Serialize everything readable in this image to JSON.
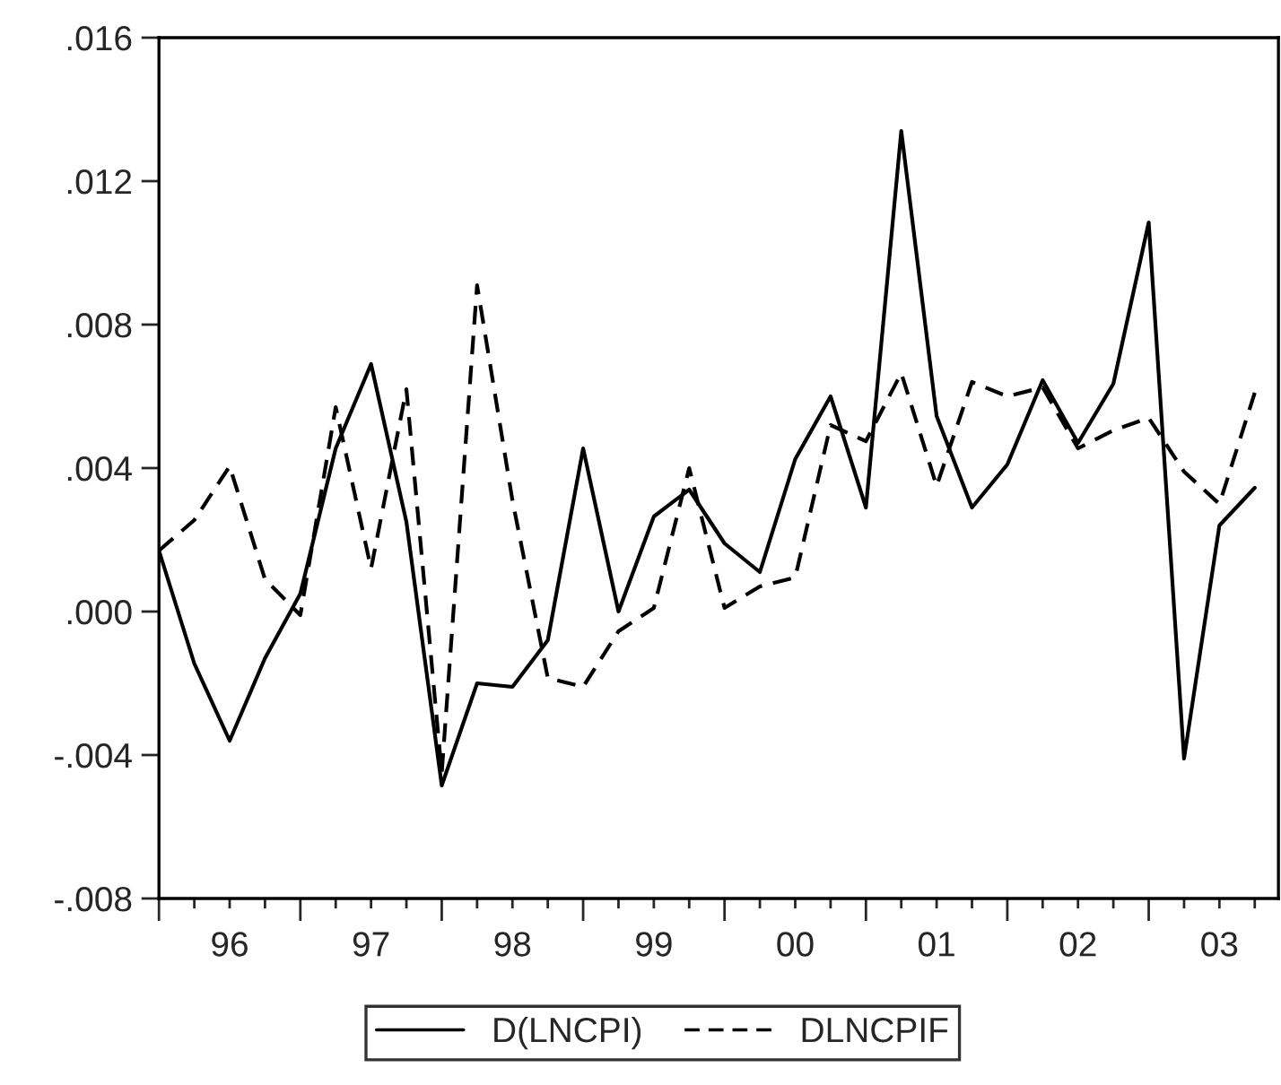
{
  "chart_data": {
    "type": "line",
    "categories": [
      null,
      null,
      "96",
      null,
      null,
      null,
      "97",
      null,
      null,
      null,
      "98",
      null,
      null,
      null,
      "99",
      null,
      null,
      null,
      "00",
      null,
      null,
      null,
      "01",
      null,
      null,
      null,
      "02",
      null,
      null,
      null,
      "03",
      null
    ],
    "series": [
      {
        "name": "D(LNCPI)",
        "color": "#000000",
        "line_style": "solid",
        "values": [
          0.0017,
          -0.00145,
          -0.0036,
          -0.0013,
          0.0005,
          0.00455,
          0.0069,
          0.0025,
          -0.00485,
          -0.002,
          -0.0021,
          -0.0008,
          0.00455,
          0.0,
          0.00265,
          0.0034,
          0.0019,
          0.0011,
          0.00425,
          0.006,
          0.0029,
          0.0134,
          0.00545,
          0.0029,
          0.0041,
          0.00645,
          0.0047,
          0.00635,
          0.01085,
          -0.0041,
          0.0024,
          0.00345
        ]
      },
      {
        "name": "DLNCPIF",
        "color": "#000000",
        "line_style": "dashed",
        "values": [
          0.0017,
          0.00255,
          0.00405,
          0.0009,
          -0.0001,
          0.0057,
          0.0012,
          0.0062,
          -0.0045,
          0.0091,
          0.0031,
          -0.00185,
          -0.0021,
          -0.00055,
          0.0001,
          0.004,
          0.0001,
          0.0007,
          0.00095,
          0.0052,
          0.00475,
          0.00665,
          0.0035,
          0.0064,
          0.006,
          0.00625,
          0.00455,
          0.00505,
          0.0054,
          0.0039,
          0.003,
          0.0061
        ]
      }
    ],
    "ylim": [
      -0.008,
      0.016
    ],
    "yticks": [
      {
        "value": -0.008,
        "label": "-.008"
      },
      {
        "value": -0.004,
        "label": "-.004"
      },
      {
        "value": 0.0,
        "label": ".000"
      },
      {
        "value": 0.004,
        "label": ".004"
      },
      {
        "value": 0.008,
        "label": ".008"
      },
      {
        "value": 0.012,
        "label": ".012"
      },
      {
        "value": 0.016,
        "label": ".016"
      }
    ],
    "grid": false,
    "legend": "bottom",
    "marker": "none"
  }
}
